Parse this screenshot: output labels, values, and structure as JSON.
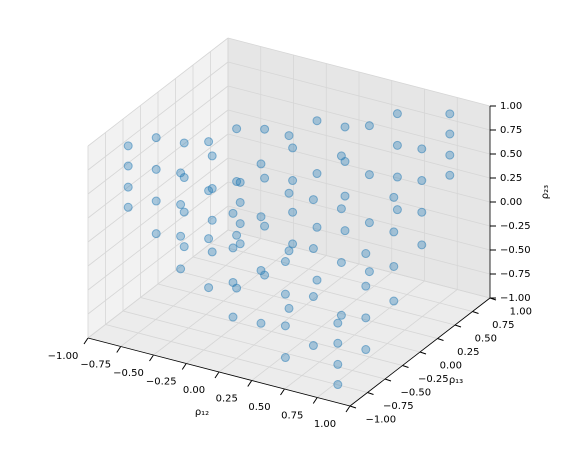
{
  "chart_data": {
    "type": "scatter3d",
    "x_label": "ρ₁₂",
    "y_label": "ρ₁₃",
    "z_label": "ρ₂₃",
    "color": "#1f77b4",
    "x": [
      -0.8,
      -0.8,
      -0.8,
      -0.8,
      -0.8,
      -0.8,
      -0.8,
      -0.8,
      -0.8,
      -0.8,
      -0.8,
      -0.8,
      -0.8,
      -0.8,
      -0.8,
      -0.8,
      -0.8,
      -0.8,
      -0.8,
      -0.8,
      -0.4,
      -0.4,
      -0.4,
      -0.4,
      -0.4,
      -0.4,
      -0.4,
      -0.4,
      -0.4,
      -0.4,
      -0.4,
      -0.4,
      -0.4,
      -0.4,
      -0.4,
      -0.4,
      -0.4,
      -0.4,
      -0.4,
      -0.4,
      0,
      0,
      0,
      0,
      0,
      0,
      0,
      0,
      0,
      0,
      0,
      0,
      0,
      0,
      0,
      0,
      0,
      0,
      0,
      0,
      0.4,
      0.4,
      0.4,
      0.4,
      0.4,
      0.4,
      0.4,
      0.4,
      0.4,
      0.4,
      0.4,
      0.4,
      0.4,
      0.4,
      0.4,
      0.4,
      0.4,
      0.4,
      0.4,
      0.4,
      0.8,
      0.8,
      0.8,
      0.8,
      0.8,
      0.8,
      0.8,
      0.8,
      0.8,
      0.8,
      0.8,
      0.8,
      0.8,
      0.8,
      0.8,
      0.8,
      0.8,
      0.8,
      0.8,
      0.8
    ],
    "y": [
      -0.8,
      -0.8,
      -0.8,
      -0.8,
      -0.4,
      -0.4,
      -0.4,
      -0.4,
      0,
      0,
      0,
      0,
      0.4,
      0.4,
      0.4,
      0.4,
      0.8,
      0.8,
      0.8,
      0.8,
      -0.8,
      -0.8,
      -0.8,
      -0.8,
      -0.4,
      -0.4,
      -0.4,
      -0.4,
      0,
      0,
      0,
      0,
      0.4,
      0.4,
      0.4,
      0.4,
      0.8,
      0.8,
      0.8,
      0.8,
      -0.8,
      -0.8,
      -0.8,
      -0.8,
      -0.4,
      -0.4,
      -0.4,
      -0.4,
      0,
      0,
      0,
      0,
      0.4,
      0.4,
      0.4,
      0.4,
      0.8,
      0.8,
      0.8,
      0.8,
      -0.8,
      -0.8,
      -0.8,
      -0.8,
      -0.4,
      -0.4,
      -0.4,
      -0.4,
      0,
      0,
      0,
      0,
      0.4,
      0.4,
      0.4,
      0.4,
      0.8,
      0.8,
      0.8,
      0.8,
      -0.8,
      -0.8,
      -0.8,
      -0.8,
      -0.4,
      -0.4,
      -0.4,
      -0.4,
      0,
      0,
      0,
      0,
      0.4,
      0.4,
      0.4,
      0.4,
      0.8,
      0.8,
      0.8,
      0.8
    ],
    "z": [
      0.32,
      0.53,
      0.75,
      0.96,
      -0.18,
      0.16,
      0.49,
      0.82,
      -0.54,
      -0.18,
      0.18,
      0.54,
      -0.82,
      -0.49,
      -0.16,
      0.18,
      -0.96,
      -0.75,
      -0.53,
      -0.32,
      -0.18,
      0.16,
      0.49,
      0.82,
      -0.6,
      -0.09,
      0.41,
      0.92,
      -0.83,
      -0.28,
      0.28,
      0.83,
      -0.92,
      -0.41,
      0.09,
      0.6,
      -0.82,
      -0.49,
      -0.16,
      0.18,
      -0.54,
      -0.18,
      0.18,
      0.54,
      -0.83,
      -0.28,
      0.28,
      0.83,
      -0.9,
      -0.3,
      0.3,
      0.9,
      -0.83,
      -0.28,
      0.28,
      0.83,
      -0.54,
      -0.18,
      0.18,
      0.54,
      -0.82,
      -0.49,
      -0.16,
      0.18,
      -0.92,
      -0.41,
      0.09,
      0.6,
      -0.83,
      -0.28,
      0.28,
      0.83,
      -0.6,
      -0.09,
      0.41,
      0.92,
      -0.18,
      0.16,
      0.49,
      0.82,
      -0.96,
      -0.75,
      -0.53,
      -0.32,
      -0.82,
      -0.49,
      -0.16,
      0.18,
      -0.54,
      -0.18,
      0.18,
      0.54,
      -0.18,
      0.16,
      0.49,
      0.82,
      0.32,
      0.53,
      0.75,
      0.96
    ],
    "xlim": [
      -1,
      1
    ],
    "ylim": [
      -1,
      1
    ],
    "zlim": [
      -1,
      1
    ],
    "xticks": [
      {
        "value": -1,
        "label": "−1.00"
      },
      {
        "value": -0.75,
        "label": "−0.75"
      },
      {
        "value": -0.5,
        "label": "−0.50"
      },
      {
        "value": -0.25,
        "label": "−0.25"
      },
      {
        "value": 0,
        "label": "0.00"
      },
      {
        "value": 0.25,
        "label": "0.25"
      },
      {
        "value": 0.5,
        "label": "0.50"
      },
      {
        "value": 0.75,
        "label": "0.75"
      },
      {
        "value": 1,
        "label": "1.00"
      }
    ],
    "yticks": [
      {
        "value": -1,
        "label": "−1.00"
      },
      {
        "value": -0.75,
        "label": "−0.75"
      },
      {
        "value": -0.5,
        "label": "−0.50"
      },
      {
        "value": -0.25,
        "label": "−0.25"
      },
      {
        "value": 0,
        "label": "0.00"
      },
      {
        "value": 0.25,
        "label": "0.25"
      },
      {
        "value": 0.5,
        "label": "0.50"
      },
      {
        "value": 0.75,
        "label": "0.75"
      },
      {
        "value": 1,
        "label": "1.00"
      }
    ],
    "zticks": [
      {
        "value": -1,
        "label": "−1.00"
      },
      {
        "value": -0.75,
        "label": "−0.75"
      },
      {
        "value": -0.5,
        "label": "−0.50"
      },
      {
        "value": -0.25,
        "label": "−0.25"
      },
      {
        "value": 0,
        "label": "0.00"
      },
      {
        "value": 0.25,
        "label": "0.25"
      },
      {
        "value": 0.5,
        "label": "0.50"
      },
      {
        "value": 0.75,
        "label": "0.75"
      },
      {
        "value": 1,
        "label": "1.00"
      }
    ],
    "grid": true
  }
}
